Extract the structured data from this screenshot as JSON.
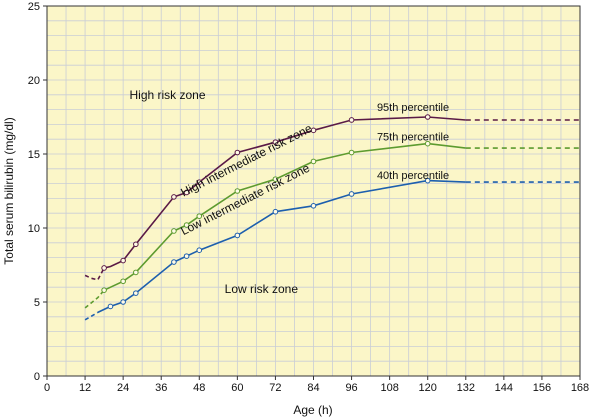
{
  "chart_data": {
    "type": "line",
    "xlabel": "Age (h)",
    "ylabel": "Total serum bilirubin (mg/dl)",
    "xlim": [
      0,
      168
    ],
    "ylim": [
      0,
      25
    ],
    "x_ticks": [
      0,
      12,
      24,
      36,
      48,
      60,
      72,
      84,
      96,
      108,
      120,
      132,
      144,
      156,
      168
    ],
    "y_ticks": [
      0,
      5,
      10,
      15,
      20,
      25
    ],
    "grid": true,
    "background_color": "#fbf6c8",
    "grid_color": "#c9cdd6",
    "series": [
      {
        "name": "95th percentile",
        "color": "#5a1a46",
        "solid": [
          [
            18,
            7.3
          ],
          [
            20,
            7.4
          ],
          [
            24,
            7.8
          ],
          [
            28,
            8.9
          ],
          [
            40,
            12.1
          ],
          [
            44,
            12.4
          ],
          [
            48,
            13.1
          ],
          [
            60,
            15.1
          ],
          [
            72,
            15.8
          ],
          [
            84,
            16.6
          ],
          [
            96,
            17.3
          ],
          [
            120,
            17.5
          ],
          [
            132,
            17.3
          ]
        ],
        "dashed_start": [
          [
            12,
            6.8
          ],
          [
            14,
            6.6
          ],
          [
            16,
            6.5
          ],
          [
            18,
            7.3
          ]
        ],
        "dashed_end": [
          [
            132,
            17.3
          ],
          [
            168,
            17.3
          ]
        ],
        "markers": [
          [
            18,
            7.3
          ],
          [
            24,
            7.8
          ],
          [
            28,
            8.9
          ],
          [
            40,
            12.1
          ],
          [
            44,
            12.4
          ],
          [
            48,
            13.1
          ],
          [
            60,
            15.1
          ],
          [
            72,
            15.8
          ],
          [
            84,
            16.6
          ],
          [
            96,
            17.3
          ],
          [
            120,
            17.5
          ]
        ]
      },
      {
        "name": "75th percentile",
        "color": "#5d9b2f",
        "solid": [
          [
            18,
            5.8
          ],
          [
            24,
            6.4
          ],
          [
            28,
            7.0
          ],
          [
            40,
            9.8
          ],
          [
            44,
            10.2
          ],
          [
            48,
            10.8
          ],
          [
            60,
            12.5
          ],
          [
            72,
            13.3
          ],
          [
            84,
            14.5
          ],
          [
            96,
            15.1
          ],
          [
            120,
            15.7
          ],
          [
            132,
            15.4
          ]
        ],
        "dashed_start": [
          [
            12,
            4.6
          ],
          [
            16,
            5.3
          ],
          [
            18,
            5.8
          ]
        ],
        "dashed_end": [
          [
            132,
            15.4
          ],
          [
            168,
            15.4
          ]
        ],
        "markers": [
          [
            18,
            5.8
          ],
          [
            24,
            6.4
          ],
          [
            28,
            7.0
          ],
          [
            40,
            9.8
          ],
          [
            44,
            10.2
          ],
          [
            48,
            10.8
          ],
          [
            60,
            12.5
          ],
          [
            72,
            13.3
          ],
          [
            84,
            14.5
          ],
          [
            96,
            15.1
          ],
          [
            120,
            15.7
          ]
        ]
      },
      {
        "name": "40th percentile",
        "color": "#1d5fae",
        "solid": [
          [
            16,
            4.3
          ],
          [
            20,
            4.7
          ],
          [
            24,
            5.0
          ],
          [
            28,
            5.6
          ],
          [
            40,
            7.7
          ],
          [
            44,
            8.1
          ],
          [
            48,
            8.5
          ],
          [
            60,
            9.5
          ],
          [
            72,
            11.1
          ],
          [
            84,
            11.5
          ],
          [
            96,
            12.3
          ],
          [
            120,
            13.2
          ],
          [
            132,
            13.1
          ]
        ],
        "dashed_start": [
          [
            12,
            3.8
          ],
          [
            16,
            4.3
          ]
        ],
        "dashed_end": [
          [
            132,
            13.1
          ],
          [
            168,
            13.1
          ]
        ],
        "markers": [
          [
            20,
            4.7
          ],
          [
            24,
            5.0
          ],
          [
            28,
            5.6
          ],
          [
            40,
            7.7
          ],
          [
            44,
            8.1
          ],
          [
            48,
            8.5
          ],
          [
            60,
            9.5
          ],
          [
            72,
            11.1
          ],
          [
            84,
            11.5
          ],
          [
            96,
            12.3
          ],
          [
            120,
            13.2
          ]
        ]
      }
    ],
    "zone_labels": [
      {
        "text": "High risk zone",
        "x": 26,
        "y": 18.7,
        "rotate": 0
      },
      {
        "text": "High intermediate risk zone",
        "x": 43,
        "y": 12.1,
        "rotate": -27
      },
      {
        "text": "Low intermediate risk zone",
        "x": 43,
        "y": 9.5,
        "rotate": -27
      },
      {
        "text": "Low risk zone",
        "x": 56,
        "y": 5.6,
        "rotate": 0
      }
    ],
    "percentile_labels": [
      {
        "text": "95th percentile",
        "x": 104,
        "y": 17.9
      },
      {
        "text": "75th percentile",
        "x": 104,
        "y": 15.9
      },
      {
        "text": "40th percentile",
        "x": 104,
        "y": 13.3
      }
    ]
  }
}
